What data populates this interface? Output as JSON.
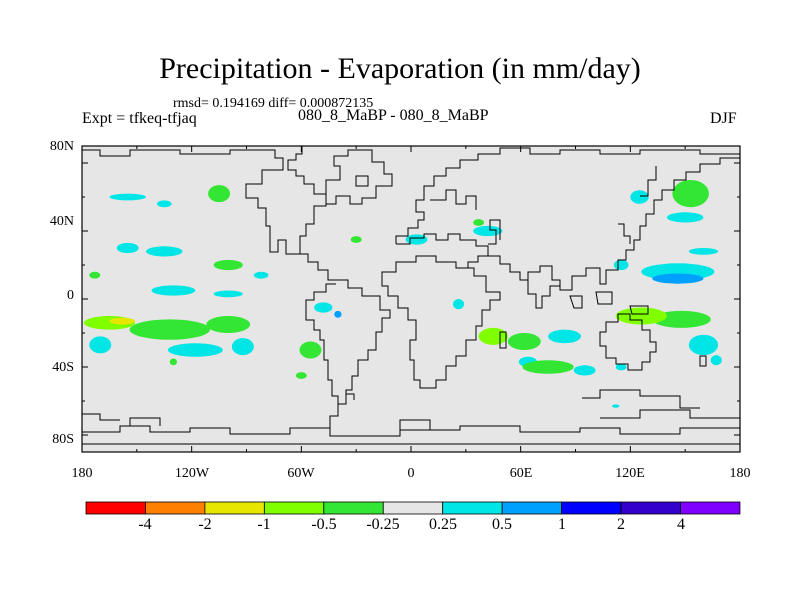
{
  "title": "Precipitation - Evaporation (in mm/day)",
  "stats": "rmsd= 0.194169  diff= 0.000872135",
  "experiment": "Expt = tfkeq-tfjaq",
  "subtitle": "080_8_MaBP - 080_8_MaBP",
  "season": "DJF",
  "y_tick_labels": [
    "80N",
    "40N",
    "0",
    "40S",
    "80S"
  ],
  "x_tick_labels": [
    "180",
    "120W",
    "60W",
    "0",
    "60E",
    "120E",
    "180"
  ],
  "colorbar": {
    "labels": [
      "-4",
      "-2",
      "-1",
      "-0.5",
      "-0.25",
      "0.25",
      "0.5",
      "1",
      "2",
      "4"
    ],
    "colors": [
      "#ff0000",
      "#ff8000",
      "#e6e600",
      "#80ff00",
      "#33e633",
      "#e6e6e6",
      "#00e6e6",
      "#00a0ff",
      "#0000ff",
      "#3300cc",
      "#8000ff"
    ]
  },
  "chart_data": {
    "type": "heatmap",
    "title": "Precipitation - Evaporation (in mm/day)",
    "xlabel": "",
    "ylabel": "",
    "xlim": [
      -180,
      180
    ],
    "ylim": [
      -90,
      90
    ],
    "x_ticks": [
      -180,
      -120,
      -60,
      0,
      60,
      120,
      180
    ],
    "y_ticks": [
      80,
      40,
      0,
      -40,
      -80
    ],
    "levels": [
      -4,
      -2,
      -1,
      -0.5,
      -0.25,
      0.25,
      0.5,
      1,
      2,
      4
    ],
    "background_value_range": [
      -0.25,
      0.25
    ],
    "regions": [
      {
        "lon": -165,
        "lat": -14,
        "value": -0.7,
        "rx": 14,
        "ry": 4
      },
      {
        "lon": -158,
        "lat": -13,
        "value": -1.2,
        "rx": 7,
        "ry": 2
      },
      {
        "lon": -132,
        "lat": -18,
        "value": -0.4,
        "rx": 22,
        "ry": 6
      },
      {
        "lon": -100,
        "lat": -15,
        "value": -0.35,
        "rx": 12,
        "ry": 5
      },
      {
        "lon": -170,
        "lat": -27,
        "value": 0.35,
        "rx": 6,
        "ry": 5
      },
      {
        "lon": -118,
        "lat": -30,
        "value": 0.35,
        "rx": 15,
        "ry": 4
      },
      {
        "lon": -92,
        "lat": -28,
        "value": 0.3,
        "rx": 6,
        "ry": 5
      },
      {
        "lon": -155,
        "lat": 60,
        "value": 0.3,
        "rx": 10,
        "ry": 2
      },
      {
        "lon": -135,
        "lat": 56,
        "value": 0.3,
        "rx": 4,
        "ry": 2
      },
      {
        "lon": -105,
        "lat": 62,
        "value": -0.4,
        "rx": 6,
        "ry": 5
      },
      {
        "lon": -155,
        "lat": 30,
        "value": 0.3,
        "rx": 6,
        "ry": 3
      },
      {
        "lon": -135,
        "lat": 28,
        "value": 0.3,
        "rx": 10,
        "ry": 3
      },
      {
        "lon": -100,
        "lat": 20,
        "value": -0.35,
        "rx": 8,
        "ry": 3
      },
      {
        "lon": -173,
        "lat": 14,
        "value": -0.3,
        "rx": 3,
        "ry": 2
      },
      {
        "lon": -82,
        "lat": 14,
        "value": 0.3,
        "rx": 4,
        "ry": 2
      },
      {
        "lon": -130,
        "lat": 5,
        "value": 0.4,
        "rx": 12,
        "ry": 3
      },
      {
        "lon": -100,
        "lat": 3,
        "value": 0.3,
        "rx": 8,
        "ry": 2
      },
      {
        "lon": -55,
        "lat": -30,
        "value": -0.5,
        "rx": 6,
        "ry": 5
      },
      {
        "lon": -48,
        "lat": -5,
        "value": 0.35,
        "rx": 5,
        "ry": 3
      },
      {
        "lon": -40,
        "lat": -9,
        "value": 0.7,
        "rx": 2,
        "ry": 2
      },
      {
        "lon": -30,
        "lat": 35,
        "value": -0.3,
        "rx": 3,
        "ry": 2
      },
      {
        "lon": 3,
        "lat": 35,
        "value": 0.3,
        "rx": 6,
        "ry": 3
      },
      {
        "lon": 42,
        "lat": 40,
        "value": 0.35,
        "rx": 8,
        "ry": 3
      },
      {
        "lon": 37,
        "lat": 45,
        "value": -0.3,
        "rx": 3,
        "ry": 2
      },
      {
        "lon": 26,
        "lat": -3,
        "value": 0.4,
        "rx": 3,
        "ry": 3
      },
      {
        "lon": 45,
        "lat": -22,
        "value": -0.7,
        "rx": 8,
        "ry": 5
      },
      {
        "lon": 62,
        "lat": -25,
        "value": -0.4,
        "rx": 9,
        "ry": 5
      },
      {
        "lon": 84,
        "lat": -22,
        "value": 0.35,
        "rx": 9,
        "ry": 4
      },
      {
        "lon": 75,
        "lat": -40,
        "value": -0.35,
        "rx": 14,
        "ry": 4
      },
      {
        "lon": 95,
        "lat": -42,
        "value": 0.35,
        "rx": 6,
        "ry": 3
      },
      {
        "lon": 64,
        "lat": -37,
        "value": 0.3,
        "rx": 5,
        "ry": 3
      },
      {
        "lon": 115,
        "lat": -40,
        "value": 0.3,
        "rx": 3,
        "ry": 2
      },
      {
        "lon": 126,
        "lat": -10,
        "value": -0.7,
        "rx": 14,
        "ry": 5
      },
      {
        "lon": 148,
        "lat": -12,
        "value": -0.35,
        "rx": 16,
        "ry": 5
      },
      {
        "lon": 160,
        "lat": -27,
        "value": 0.3,
        "rx": 8,
        "ry": 6
      },
      {
        "lon": 146,
        "lat": 12,
        "value": 0.8,
        "rx": 14,
        "ry": 3
      },
      {
        "lon": 146,
        "lat": 16,
        "value": 0.4,
        "rx": 20,
        "ry": 5
      },
      {
        "lon": 153,
        "lat": 62,
        "value": -0.35,
        "rx": 10,
        "ry": 8
      },
      {
        "lon": 125,
        "lat": 60,
        "value": 0.3,
        "rx": 5,
        "ry": 4
      },
      {
        "lon": 150,
        "lat": 48,
        "value": 0.3,
        "rx": 10,
        "ry": 3
      },
      {
        "lon": 115,
        "lat": 20,
        "value": 0.3,
        "rx": 4,
        "ry": 3
      },
      {
        "lon": 160,
        "lat": 28,
        "value": 0.3,
        "rx": 8,
        "ry": 2
      },
      {
        "lon": 167,
        "lat": -36,
        "value": 0.3,
        "rx": 3,
        "ry": 3
      },
      {
        "lon": -60,
        "lat": -45,
        "value": -0.3,
        "rx": 3,
        "ry": 2
      },
      {
        "lon": -130,
        "lat": -37,
        "value": -0.3,
        "rx": 2,
        "ry": 2
      },
      {
        "lon": 112,
        "lat": -63,
        "value": 0.3,
        "rx": 2,
        "ry": 1
      }
    ]
  }
}
